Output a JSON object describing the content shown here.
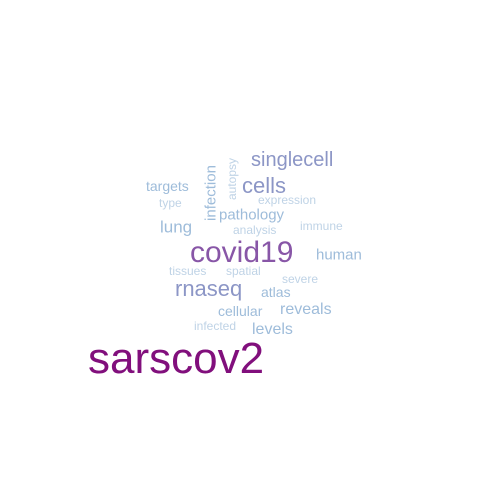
{
  "word_cloud": {
    "palette": {
      "darkest": "#810f7c",
      "dark": "#8856a7",
      "mid": "#8c96c6",
      "light": "#9ebcda",
      "lightest": "#bfd3e6"
    },
    "words": [
      {
        "text": "sarscov2",
        "color": "#810f7c"
      },
      {
        "text": "covid19",
        "color": "#8856a7"
      },
      {
        "text": "cells",
        "color": "#8c96c6"
      },
      {
        "text": "singlecell",
        "color": "#8c96c6"
      },
      {
        "text": "rnaseq",
        "color": "#8c96c6"
      },
      {
        "text": "reveals",
        "color": "#9ebcda"
      },
      {
        "text": "levels",
        "color": "#9ebcda"
      },
      {
        "text": "lung",
        "color": "#9ebcda"
      },
      {
        "text": "human",
        "color": "#9ebcda"
      },
      {
        "text": "pathology",
        "color": "#9ebcda"
      },
      {
        "text": "targets",
        "color": "#9ebcda"
      },
      {
        "text": "infection",
        "color": "#9ebcda"
      },
      {
        "text": "atlas",
        "color": "#9ebcda"
      },
      {
        "text": "cellular",
        "color": "#9ebcda"
      },
      {
        "text": "expression",
        "color": "#bfd3e6"
      },
      {
        "text": "immune",
        "color": "#bfd3e6"
      },
      {
        "text": "analysis",
        "color": "#bfd3e6"
      },
      {
        "text": "autopsy",
        "color": "#bfd3e6"
      },
      {
        "text": "type",
        "color": "#bfd3e6"
      },
      {
        "text": "tissues",
        "color": "#bfd3e6"
      },
      {
        "text": "spatial",
        "color": "#bfd3e6"
      },
      {
        "text": "severe",
        "color": "#bfd3e6"
      },
      {
        "text": "infected",
        "color": "#bfd3e6"
      }
    ]
  }
}
